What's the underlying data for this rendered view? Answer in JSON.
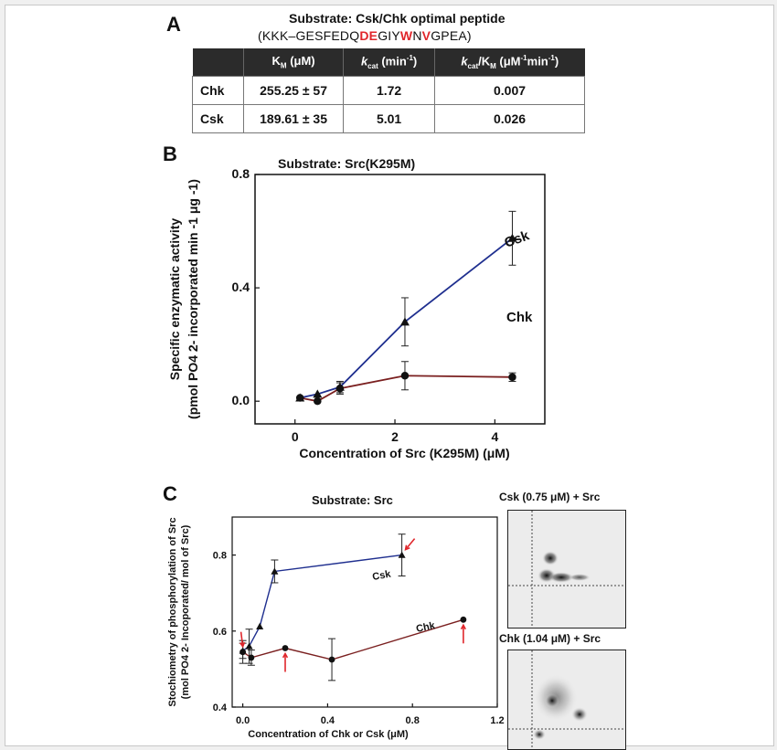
{
  "panelA": {
    "letter": "A",
    "title": "Substrate: Csk/Chk optimal peptide",
    "peptide_parts": [
      {
        "text": "(KKK–GESFEDQ",
        "red": false
      },
      {
        "text": "DE",
        "red": true
      },
      {
        "text": "GIY",
        "red": false
      },
      {
        "text": "W",
        "red": true
      },
      {
        "text": "N",
        "red": false
      },
      {
        "text": "V",
        "red": true
      },
      {
        "text": "GPEA)",
        "red": false
      }
    ],
    "table": {
      "headers": [
        "",
        "KM (μM)",
        "kcat (min-1)",
        "kcat/KM (μM-1min-1)"
      ],
      "rows": [
        {
          "name": "Chk",
          "km": "255.25 ± 57",
          "kcat": "1.72",
          "ratio": "0.007"
        },
        {
          "name": "Csk",
          "km": "189.61 ± 35",
          "kcat": "5.01",
          "ratio": "0.026"
        }
      ]
    }
  },
  "chart_data": [
    {
      "panel": "B",
      "type": "line",
      "title": "Substrate: Src(K295M)",
      "xlabel": "Concentration of Src (K295M) (μM)",
      "ylabel_line1": "Specific enzymatic activity",
      "ylabel_line2": "(pmol PO4 2- incorporated min -1 μg -1)",
      "xlim": [
        -0.8,
        5.0
      ],
      "ylim": [
        -0.08,
        0.8
      ],
      "xticks": [
        0,
        2,
        4
      ],
      "yticks": [
        0.0,
        0.4,
        0.8
      ],
      "series": [
        {
          "name": "Csk",
          "color": "#1f2f8f",
          "marker": "triangle",
          "x": [
            0.1,
            0.45,
            0.9,
            2.2,
            4.35
          ],
          "y": [
            0.012,
            0.025,
            0.05,
            0.28,
            0.575
          ],
          "err": [
            0.0,
            0.0,
            0.02,
            0.085,
            0.095
          ]
        },
        {
          "name": "Chk",
          "color": "#7a1f1f",
          "marker": "circle",
          "x": [
            0.1,
            0.45,
            0.9,
            2.2,
            4.35
          ],
          "y": [
            0.012,
            0.0,
            0.045,
            0.09,
            0.085
          ],
          "err": [
            0.0,
            0.0,
            0.02,
            0.05,
            0.015
          ]
        }
      ],
      "annotations": [
        "Csk",
        "Chk"
      ]
    },
    {
      "panel": "C",
      "type": "line",
      "title": "Substrate: Src",
      "xlabel": "Concentration of Chk or Csk (μM)",
      "ylabel_line1": "Stochiometry of phosphorylation of Src",
      "ylabel_line2": "(mol PO4 2- Incoporated/ mol of Src)",
      "xlim": [
        -0.05,
        1.2
      ],
      "ylim": [
        0.4,
        0.9
      ],
      "xticks": [
        "0.0",
        "0.4",
        "0.8",
        "1.2"
      ],
      "yticks": [
        "0.4",
        "0.6",
        "0.8"
      ],
      "series": [
        {
          "name": "Csk",
          "color": "#1f2f8f",
          "marker": "triangle",
          "x": [
            0.0,
            0.03,
            0.08,
            0.15,
            0.75
          ],
          "y": [
            0.548,
            0.56,
            0.612,
            0.757,
            0.8
          ],
          "err": [
            0.02,
            0.045,
            0.0,
            0.03,
            0.055
          ]
        },
        {
          "name": "Chk",
          "color": "#7a1f1f",
          "marker": "circle",
          "x": [
            0.0,
            0.04,
            0.2,
            0.42,
            1.04
          ],
          "y": [
            0.545,
            0.53,
            0.555,
            0.525,
            0.63
          ],
          "err": [
            0.03,
            0.02,
            0.0,
            0.055,
            0.0
          ]
        }
      ],
      "annotations": [
        "Csk",
        "Chk"
      ]
    }
  ],
  "panelC_images": [
    {
      "label": "Csk (0.75 μM) + Src"
    },
    {
      "label": "Chk (1.04 μM) + Src"
    }
  ],
  "panel_letters": {
    "B": "B",
    "C": "C"
  }
}
